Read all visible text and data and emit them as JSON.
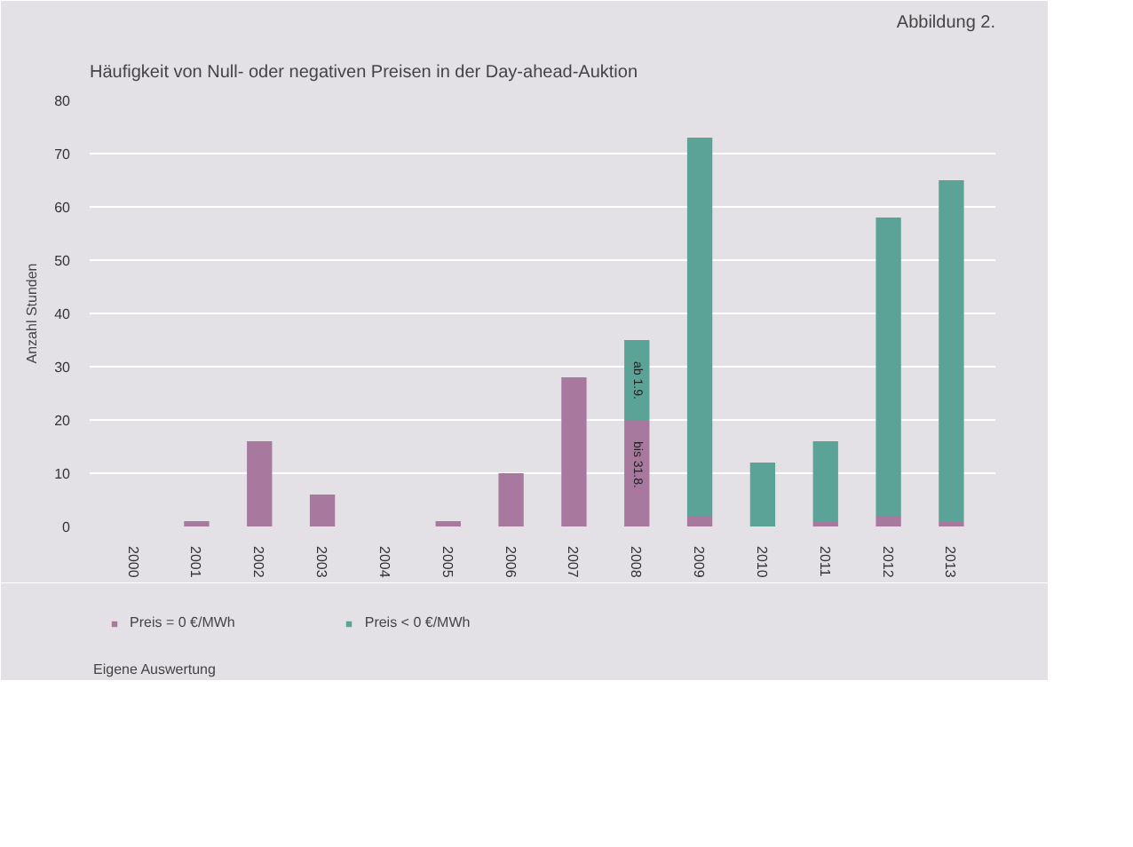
{
  "chart_data": {
    "type": "bar",
    "title": "Häufigkeit von Null- oder negativen Preisen in der Day-ahead-Auktion",
    "categories": [
      "2000",
      "2001",
      "2002",
      "2003",
      "2004",
      "2005",
      "2006",
      "2007",
      "2008",
      "2009",
      "2010",
      "2011",
      "2012",
      "2013"
    ],
    "series": [
      {
        "name": "Preis = 0 €/MWh",
        "color": "#a8789f",
        "values": [
          0,
          1,
          16,
          6,
          0,
          1,
          10,
          28,
          20,
          2,
          0,
          1,
          2,
          1
        ]
      },
      {
        "name": "Preis < 0 €/MWh",
        "color": "#5aa396",
        "values": [
          0,
          0,
          0,
          0,
          0,
          0,
          0,
          0,
          15,
          71,
          12,
          15,
          56,
          64
        ]
      }
    ],
    "stacked": true,
    "ylabel": "Anzahl Stunden",
    "ylim": [
      0,
      80
    ],
    "yticks": [
      0,
      10,
      20,
      30,
      40,
      50,
      60,
      70,
      80
    ],
    "grid": "y",
    "legend": "bottom",
    "annotations": [
      "Abbildung 2.",
      {
        "text": "bis 31.8.",
        "x": "2008",
        "y": 20
      },
      {
        "text": "ab 1.9.",
        "x": "2008",
        "y": 35
      },
      "Eigene Auswertung"
    ]
  }
}
